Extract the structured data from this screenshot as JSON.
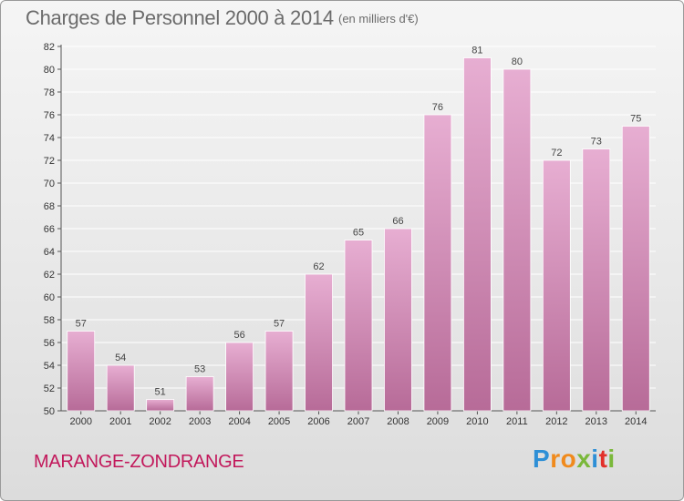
{
  "header": {
    "title": "Charges de Personnel 2000 à 2014",
    "unit": "(en milliers d'€)"
  },
  "footer": {
    "commune": "MARANGE-ZONDRANGE",
    "logo_letters": [
      "P",
      "r",
      "o",
      "x",
      "i",
      "t",
      "i"
    ]
  },
  "colors": {
    "bar_top": "#e7aed2",
    "bar_bottom": "#b76b98",
    "commune_text": "#c2185b",
    "grid": "#ffffff"
  },
  "chart_data": {
    "type": "bar",
    "title": "Charges de Personnel 2000 à 2014",
    "subtitle": "(en milliers d'€)",
    "xlabel": "",
    "ylabel": "",
    "categories": [
      "2000",
      "2001",
      "2002",
      "2003",
      "2004",
      "2005",
      "2006",
      "2007",
      "2008",
      "2009",
      "2010",
      "2011",
      "2012",
      "2013",
      "2014"
    ],
    "values": [
      57,
      54,
      51,
      53,
      56,
      57,
      62,
      65,
      66,
      76,
      81,
      80,
      72,
      73,
      75
    ],
    "ylim": [
      50,
      82
    ],
    "yticks": [
      50,
      52,
      54,
      56,
      58,
      60,
      62,
      64,
      66,
      68,
      70,
      72,
      74,
      76,
      78,
      80,
      82
    ],
    "grid": true,
    "data_labels": true
  }
}
